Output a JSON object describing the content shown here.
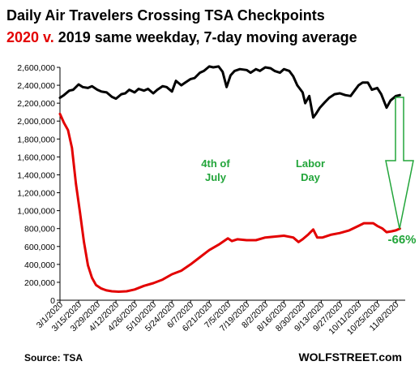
{
  "chart_data": {
    "type": "line",
    "title": "Daily Air Travelers Crossing TSA Checkpoints",
    "subtitle_highlight": "2020 v.",
    "subtitle_rest": "2019 same weekday, 7-day moving average",
    "ylim": [
      0,
      2600000
    ],
    "yticks": [
      "0",
      "200,000",
      "400,000",
      "600,000",
      "800,000",
      "1,000,000",
      "1,200,000",
      "1,400,000",
      "1,600,000",
      "1,800,000",
      "2,000,000",
      "2,200,000",
      "2,400,000",
      "2,600,000"
    ],
    "ytick_values": [
      0,
      200000,
      400000,
      600000,
      800000,
      1000000,
      1200000,
      1400000,
      1600000,
      1800000,
      2000000,
      2200000,
      2400000,
      2600000
    ],
    "xlim": [
      "2020-03-01",
      "2020-11-15"
    ],
    "xticks": [
      "3/1/2020",
      "3/15/2020",
      "3/29/2020",
      "4/12/2020",
      "4/26/2020",
      "5/10/2020",
      "5/24/2020",
      "6/7/2020",
      "6/21/2020",
      "7/5/2020",
      "7/19/2020",
      "8/2/2020",
      "8/16/2020",
      "8/30/2020",
      "9/13/2020",
      "9/27/2020",
      "10/11/2020",
      "10/25/2020",
      "11/8/2020"
    ],
    "xtick_dates": [
      "2020-03-01",
      "2020-03-15",
      "2020-03-29",
      "2020-04-12",
      "2020-04-26",
      "2020-05-10",
      "2020-05-24",
      "2020-06-07",
      "2020-06-21",
      "2020-07-05",
      "2020-07-19",
      "2020-08-02",
      "2020-08-16",
      "2020-08-30",
      "2020-09-13",
      "2020-09-27",
      "2020-10-11",
      "2020-10-25",
      "2020-11-08"
    ],
    "grid": false,
    "series": [
      {
        "name": "2019",
        "color": "#000000",
        "points": [
          [
            "2020-03-01",
            2260000
          ],
          [
            "2020-03-04",
            2290000
          ],
          [
            "2020-03-08",
            2340000
          ],
          [
            "2020-03-11",
            2350000
          ],
          [
            "2020-03-15",
            2410000
          ],
          [
            "2020-03-18",
            2380000
          ],
          [
            "2020-03-22",
            2370000
          ],
          [
            "2020-03-25",
            2390000
          ],
          [
            "2020-03-29",
            2350000
          ],
          [
            "2020-04-01",
            2330000
          ],
          [
            "2020-04-05",
            2320000
          ],
          [
            "2020-04-09",
            2270000
          ],
          [
            "2020-04-12",
            2250000
          ],
          [
            "2020-04-16",
            2300000
          ],
          [
            "2020-04-19",
            2310000
          ],
          [
            "2020-04-22",
            2350000
          ],
          [
            "2020-04-26",
            2320000
          ],
          [
            "2020-04-29",
            2360000
          ],
          [
            "2020-05-03",
            2340000
          ],
          [
            "2020-05-06",
            2360000
          ],
          [
            "2020-05-10",
            2310000
          ],
          [
            "2020-05-13",
            2350000
          ],
          [
            "2020-05-17",
            2390000
          ],
          [
            "2020-05-20",
            2380000
          ],
          [
            "2020-05-24",
            2330000
          ],
          [
            "2020-05-27",
            2450000
          ],
          [
            "2020-05-31",
            2400000
          ],
          [
            "2020-06-03",
            2430000
          ],
          [
            "2020-06-07",
            2470000
          ],
          [
            "2020-06-10",
            2480000
          ],
          [
            "2020-06-14",
            2540000
          ],
          [
            "2020-06-17",
            2560000
          ],
          [
            "2020-06-21",
            2610000
          ],
          [
            "2020-06-24",
            2600000
          ],
          [
            "2020-06-28",
            2610000
          ],
          [
            "2020-07-01",
            2550000
          ],
          [
            "2020-07-04",
            2380000
          ],
          [
            "2020-07-07",
            2510000
          ],
          [
            "2020-07-10",
            2560000
          ],
          [
            "2020-07-14",
            2580000
          ],
          [
            "2020-07-19",
            2570000
          ],
          [
            "2020-07-22",
            2540000
          ],
          [
            "2020-07-26",
            2580000
          ],
          [
            "2020-07-29",
            2560000
          ],
          [
            "2020-08-02",
            2600000
          ],
          [
            "2020-08-06",
            2590000
          ],
          [
            "2020-08-09",
            2560000
          ],
          [
            "2020-08-13",
            2540000
          ],
          [
            "2020-08-16",
            2580000
          ],
          [
            "2020-08-20",
            2560000
          ],
          [
            "2020-08-23",
            2500000
          ],
          [
            "2020-08-26",
            2400000
          ],
          [
            "2020-08-30",
            2320000
          ],
          [
            "2020-09-01",
            2200000
          ],
          [
            "2020-09-04",
            2280000
          ],
          [
            "2020-09-07",
            2040000
          ],
          [
            "2020-09-09",
            2080000
          ],
          [
            "2020-09-12",
            2150000
          ],
          [
            "2020-09-15",
            2200000
          ],
          [
            "2020-09-19",
            2260000
          ],
          [
            "2020-09-23",
            2300000
          ],
          [
            "2020-09-27",
            2310000
          ],
          [
            "2020-10-01",
            2290000
          ],
          [
            "2020-10-05",
            2280000
          ],
          [
            "2020-10-08",
            2340000
          ],
          [
            "2020-10-11",
            2400000
          ],
          [
            "2020-10-14",
            2430000
          ],
          [
            "2020-10-18",
            2430000
          ],
          [
            "2020-10-21",
            2350000
          ],
          [
            "2020-10-25",
            2370000
          ],
          [
            "2020-10-28",
            2300000
          ],
          [
            "2020-11-01",
            2150000
          ],
          [
            "2020-11-04",
            2230000
          ],
          [
            "2020-11-08",
            2280000
          ],
          [
            "2020-11-11",
            2290000
          ]
        ]
      },
      {
        "name": "2020",
        "color": "#e30000",
        "points": [
          [
            "2020-03-01",
            2080000
          ],
          [
            "2020-03-04",
            1980000
          ],
          [
            "2020-03-07",
            1900000
          ],
          [
            "2020-03-10",
            1700000
          ],
          [
            "2020-03-13",
            1300000
          ],
          [
            "2020-03-16",
            980000
          ],
          [
            "2020-03-19",
            650000
          ],
          [
            "2020-03-22",
            390000
          ],
          [
            "2020-03-25",
            250000
          ],
          [
            "2020-03-28",
            170000
          ],
          [
            "2020-04-01",
            130000
          ],
          [
            "2020-04-05",
            110000
          ],
          [
            "2020-04-09",
            100000
          ],
          [
            "2020-04-14",
            95000
          ],
          [
            "2020-04-20",
            100000
          ],
          [
            "2020-04-26",
            120000
          ],
          [
            "2020-05-03",
            160000
          ],
          [
            "2020-05-10",
            190000
          ],
          [
            "2020-05-17",
            230000
          ],
          [
            "2020-05-24",
            290000
          ],
          [
            "2020-05-31",
            330000
          ],
          [
            "2020-06-07",
            400000
          ],
          [
            "2020-06-14",
            480000
          ],
          [
            "2020-06-21",
            560000
          ],
          [
            "2020-06-28",
            620000
          ],
          [
            "2020-07-05",
            690000
          ],
          [
            "2020-07-08",
            660000
          ],
          [
            "2020-07-12",
            680000
          ],
          [
            "2020-07-19",
            670000
          ],
          [
            "2020-07-26",
            670000
          ],
          [
            "2020-08-02",
            700000
          ],
          [
            "2020-08-09",
            710000
          ],
          [
            "2020-08-16",
            720000
          ],
          [
            "2020-08-23",
            700000
          ],
          [
            "2020-08-27",
            650000
          ],
          [
            "2020-08-30",
            680000
          ],
          [
            "2020-09-03",
            730000
          ],
          [
            "2020-09-07",
            790000
          ],
          [
            "2020-09-10",
            700000
          ],
          [
            "2020-09-14",
            700000
          ],
          [
            "2020-09-20",
            730000
          ],
          [
            "2020-09-27",
            750000
          ],
          [
            "2020-10-04",
            780000
          ],
          [
            "2020-10-11",
            830000
          ],
          [
            "2020-10-15",
            860000
          ],
          [
            "2020-10-18",
            860000
          ],
          [
            "2020-10-22",
            860000
          ],
          [
            "2020-10-25",
            830000
          ],
          [
            "2020-10-29",
            800000
          ],
          [
            "2020-11-01",
            760000
          ],
          [
            "2020-11-05",
            770000
          ],
          [
            "2020-11-08",
            780000
          ],
          [
            "2020-11-11",
            800000
          ]
        ]
      }
    ],
    "annotations": {
      "july4_line1": "4th of",
      "july4_line2": "July",
      "labor_line1": "Labor",
      "labor_line2": "Day",
      "pct_change": "-66%"
    },
    "source": "Source: TSA",
    "brand": "WOLFSTREET.com",
    "colors": {
      "red_series": "#e30000",
      "black_series": "#000000",
      "annotation_green": "#22a53a"
    }
  }
}
